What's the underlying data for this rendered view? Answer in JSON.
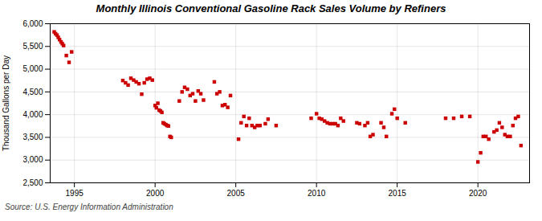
{
  "chart_data": {
    "type": "scatter",
    "title": "Monthly Illinois Conventional Gasoline Rack Sales Volume by Refiners",
    "ylabel": "Thousand Gallons per Day",
    "annotation": "Source: U.S. Energy Information Administration",
    "color": "#cc0000",
    "marker": "square",
    "grid": true,
    "xlim": [
      1993.5,
      2023.2
    ],
    "xticks": [
      1995,
      2000,
      2005,
      2010,
      2015,
      2020
    ],
    "ylim": [
      2500,
      6000
    ],
    "yticks": [
      {
        "value": 2500,
        "label": "2,500"
      },
      {
        "value": 3000,
        "label": "3,000"
      },
      {
        "value": 3500,
        "label": "3,500"
      },
      {
        "value": 4000,
        "label": "4,000"
      },
      {
        "value": 4500,
        "label": "4,500"
      },
      {
        "value": 5000,
        "label": "5,000"
      },
      {
        "value": 5500,
        "label": "5,500"
      },
      {
        "value": 6000,
        "label": "6,000"
      }
    ],
    "x": [
      1993.75,
      1993.83,
      1993.92,
      1994.0,
      1994.08,
      1994.17,
      1994.25,
      1994.33,
      1994.5,
      1994.67,
      1994.83,
      1998.0,
      1998.17,
      1998.33,
      1998.5,
      1998.67,
      1998.83,
      1999.0,
      1999.17,
      1999.33,
      1999.5,
      1999.67,
      1999.83,
      2000.0,
      2000.08,
      2000.17,
      2000.25,
      2000.33,
      2000.42,
      2000.5,
      2000.58,
      2000.67,
      2000.75,
      2000.83,
      2000.92,
      2001.0,
      2001.5,
      2001.67,
      2001.83,
      2002.0,
      2002.17,
      2002.33,
      2002.5,
      2002.67,
      2002.83,
      2003.0,
      2003.67,
      2003.83,
      2004.0,
      2004.17,
      2004.33,
      2004.5,
      2004.67,
      2005.17,
      2005.33,
      2005.5,
      2005.67,
      2005.83,
      2006.0,
      2006.17,
      2006.33,
      2006.5,
      2006.83,
      2007.0,
      2007.5,
      2009.67,
      2010.0,
      2010.17,
      2010.33,
      2010.5,
      2010.67,
      2010.83,
      2011.0,
      2011.17,
      2011.33,
      2011.5,
      2011.67,
      2012.5,
      2012.67,
      2013.0,
      2013.17,
      2013.33,
      2013.5,
      2014.0,
      2014.17,
      2014.33,
      2014.67,
      2014.83,
      2015.0,
      2015.5,
      2018.0,
      2018.5,
      2019.0,
      2019.5,
      2020.0,
      2020.17,
      2020.33,
      2020.5,
      2020.67,
      2021.0,
      2021.17,
      2021.33,
      2021.5,
      2021.67,
      2021.83,
      2022.0,
      2022.17,
      2022.33,
      2022.5,
      2022.67
    ],
    "values": [
      5820,
      5780,
      5750,
      5700,
      5650,
      5600,
      5560,
      5520,
      5300,
      5150,
      5380,
      4750,
      4700,
      4650,
      4800,
      4760,
      4720,
      4680,
      4450,
      4700,
      4780,
      4800,
      4760,
      4200,
      4150,
      4250,
      4100,
      4080,
      4050,
      3820,
      3800,
      3780,
      3760,
      3750,
      3520,
      3500,
      4300,
      4500,
      4600,
      4560,
      4420,
      4460,
      4300,
      4520,
      4460,
      4320,
      4720,
      4460,
      4500,
      4200,
      4220,
      4160,
      4420,
      3460,
      3820,
      3960,
      3760,
      3920,
      3760,
      3720,
      3760,
      3760,
      3800,
      3900,
      3760,
      3920,
      4020,
      3920,
      3900,
      3860,
      3820,
      3800,
      3800,
      3800,
      3760,
      3920,
      3860,
      3820,
      3800,
      3760,
      3820,
      3520,
      3560,
      3820,
      3720,
      3520,
      4020,
      4120,
      3920,
      3820,
      3920,
      3920,
      3960,
      3960,
      2960,
      3160,
      3520,
      3520,
      3460,
      3620,
      3660,
      3820,
      3720,
      3560,
      3520,
      3520,
      3760,
      3920,
      3960,
      3320
    ]
  }
}
